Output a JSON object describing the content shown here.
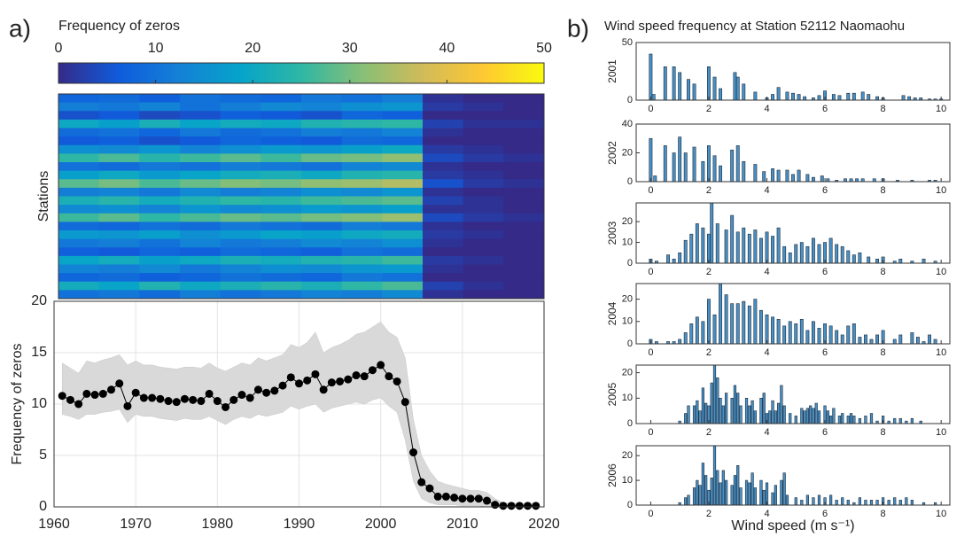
{
  "panel_labels": [
    "a)",
    "b)"
  ],
  "chart_data": [
    {
      "type": "heatmap",
      "title": "Frequency of zeros",
      "ylabel": "Stations",
      "clim": [
        0,
        50
      ],
      "cticks": [
        0,
        10,
        20,
        30,
        40,
        50
      ],
      "colormap": [
        "#352a87",
        "#0f5cdd",
        "#1481d6",
        "#06a4ca",
        "#2eb7a4",
        "#87bf77",
        "#d1bb59",
        "#fec832",
        "#f9fb0e"
      ],
      "matrix": [
        [
          8,
          9,
          7,
          10,
          9,
          8,
          11,
          10,
          12,
          1,
          0,
          0
        ],
        [
          12,
          11,
          13,
          10,
          12,
          14,
          13,
          15,
          16,
          2,
          1,
          0
        ],
        [
          5,
          6,
          4,
          5,
          7,
          6,
          5,
          8,
          7,
          0,
          0,
          0
        ],
        [
          20,
          18,
          22,
          19,
          21,
          20,
          23,
          24,
          25,
          3,
          1,
          1
        ],
        [
          9,
          10,
          8,
          11,
          9,
          10,
          12,
          11,
          13,
          1,
          0,
          0
        ],
        [
          6,
          7,
          5,
          6,
          8,
          7,
          6,
          9,
          8,
          0,
          0,
          0
        ],
        [
          15,
          14,
          16,
          13,
          15,
          17,
          16,
          18,
          20,
          2,
          1,
          0
        ],
        [
          25,
          27,
          24,
          26,
          28,
          26,
          29,
          30,
          32,
          4,
          2,
          1
        ],
        [
          10,
          9,
          11,
          10,
          12,
          11,
          10,
          13,
          14,
          1,
          0,
          0
        ],
        [
          18,
          20,
          17,
          19,
          21,
          22,
          20,
          23,
          24,
          2,
          1,
          0
        ],
        [
          28,
          30,
          27,
          29,
          31,
          30,
          32,
          33,
          35,
          5,
          2,
          1
        ],
        [
          12,
          13,
          11,
          14,
          12,
          13,
          15,
          14,
          16,
          1,
          0,
          0
        ],
        [
          22,
          24,
          21,
          23,
          25,
          24,
          26,
          27,
          28,
          3,
          1,
          0
        ],
        [
          14,
          15,
          13,
          16,
          14,
          15,
          17,
          16,
          18,
          1,
          1,
          0
        ],
        [
          26,
          28,
          25,
          27,
          29,
          28,
          30,
          31,
          33,
          4,
          2,
          1
        ],
        [
          9,
          8,
          10,
          9,
          11,
          10,
          9,
          12,
          11,
          1,
          0,
          0
        ],
        [
          17,
          16,
          18,
          15,
          17,
          19,
          18,
          20,
          21,
          2,
          1,
          0
        ],
        [
          11,
          12,
          10,
          13,
          11,
          12,
          14,
          13,
          15,
          1,
          0,
          0
        ],
        [
          7,
          6,
          8,
          7,
          9,
          8,
          7,
          10,
          9,
          0,
          0,
          0
        ],
        [
          19,
          21,
          18,
          20,
          22,
          21,
          23,
          24,
          26,
          2,
          1,
          0
        ],
        [
          13,
          12,
          14,
          11,
          13,
          15,
          14,
          16,
          17,
          1,
          0,
          0
        ],
        [
          8,
          9,
          7,
          8,
          10,
          9,
          8,
          11,
          10,
          0,
          0,
          0
        ],
        [
          21,
          19,
          23,
          20,
          22,
          24,
          22,
          25,
          27,
          3,
          1,
          0
        ],
        [
          10,
          11,
          9,
          12,
          10,
          11,
          13,
          12,
          14,
          1,
          0,
          0
        ]
      ]
    },
    {
      "type": "line",
      "ylabel": "Frequency of zeros",
      "grid": true,
      "xlim": [
        1960,
        2020
      ],
      "xticks": [
        1960,
        1970,
        1980,
        1990,
        2000,
        2010,
        2020
      ],
      "ylim": [
        0,
        20
      ],
      "yticks": [
        0,
        5,
        10,
        15,
        20
      ],
      "x": [
        1961,
        1962,
        1963,
        1964,
        1965,
        1966,
        1967,
        1968,
        1969,
        1970,
        1971,
        1972,
        1973,
        1974,
        1975,
        1976,
        1977,
        1978,
        1979,
        1980,
        1981,
        1982,
        1983,
        1984,
        1985,
        1986,
        1987,
        1988,
        1989,
        1990,
        1991,
        1992,
        1993,
        1994,
        1995,
        1996,
        1997,
        1998,
        1999,
        2000,
        2001,
        2002,
        2003,
        2004,
        2005,
        2006,
        2007,
        2008,
        2009,
        2010,
        2011,
        2012,
        2013,
        2014,
        2015,
        2016,
        2017,
        2018,
        2019
      ],
      "band": {
        "color": "#d9d9d9",
        "high": [
          14.0,
          13.5,
          13.0,
          14.2,
          14.0,
          14.3,
          14.5,
          14.8,
          13.8,
          14.2,
          13.8,
          13.8,
          13.6,
          13.5,
          13.4,
          13.6,
          13.6,
          13.5,
          14.0,
          13.5,
          13.2,
          13.6,
          14.0,
          13.8,
          14.5,
          14.2,
          14.5,
          14.8,
          15.8,
          15.5,
          16.0,
          17.0,
          15.0,
          15.5,
          15.8,
          16.2,
          16.8,
          17.0,
          17.5,
          18.0,
          17.0,
          16.5,
          14.5,
          8.5,
          5.0,
          3.5,
          2.5,
          2.2,
          2.0,
          1.8,
          1.6,
          1.6,
          1.4,
          0.8,
          0.4,
          0.3,
          0.3,
          0.3,
          0.3
        ],
        "low": [
          9.0,
          8.8,
          8.5,
          9.0,
          9.0,
          9.2,
          9.3,
          9.5,
          8.2,
          9.0,
          8.8,
          8.8,
          8.6,
          8.5,
          8.4,
          8.6,
          8.5,
          8.5,
          8.8,
          8.4,
          8.0,
          8.5,
          8.8,
          8.6,
          9.0,
          8.8,
          9.0,
          9.2,
          9.8,
          9.5,
          9.8,
          10.0,
          9.2,
          9.6,
          9.8,
          10.0,
          10.2,
          10.0,
          10.4,
          10.6,
          9.8,
          9.2,
          6.5,
          2.5,
          0.8,
          0.4,
          0.2,
          0.2,
          0.2,
          0.1,
          0.1,
          0.1,
          0.0,
          0.0,
          0.0,
          0.0,
          0.0,
          0.0,
          0.0
        ]
      },
      "series": [
        {
          "color": "#000000",
          "values": [
            10.8,
            10.4,
            10.0,
            11.0,
            10.9,
            11.0,
            11.4,
            12.0,
            9.8,
            11.1,
            10.6,
            10.6,
            10.5,
            10.3,
            10.2,
            10.5,
            10.4,
            10.3,
            11.0,
            10.3,
            9.7,
            10.4,
            10.9,
            10.6,
            11.4,
            11.1,
            11.3,
            11.8,
            12.6,
            12.0,
            12.3,
            12.9,
            11.4,
            12.1,
            12.2,
            12.4,
            12.8,
            12.7,
            13.3,
            13.8,
            12.7,
            12.2,
            10.2,
            5.3,
            2.4,
            1.8,
            1.0,
            1.0,
            0.9,
            0.8,
            0.8,
            0.8,
            0.6,
            0.2,
            0.1,
            0.1,
            0.1,
            0.1,
            0.1
          ]
        }
      ]
    },
    {
      "type": "histogram",
      "title": "Wind speed frequency at Station 52112 Naomaohu",
      "ylabel": "2001",
      "color": "#4a90c4",
      "bar_width": 0.1,
      "xlim": [
        -0.5,
        10.3
      ],
      "xticks": [
        0,
        2,
        4,
        6,
        8,
        10
      ],
      "ylim": [
        0,
        50
      ],
      "yticks": [
        0,
        50
      ],
      "x": [
        0,
        0.1,
        0.5,
        0.8,
        1.0,
        1.3,
        1.5,
        2.0,
        2.2,
        2.4,
        2.9,
        3.0,
        3.2,
        3.6,
        4.0,
        4.2,
        4.4,
        4.7,
        4.9,
        5.1,
        5.3,
        5.6,
        5.8,
        6.0,
        6.3,
        6.5,
        6.8,
        7.0,
        7.3,
        7.5,
        7.8,
        8.0,
        8.7,
        8.9,
        9.1,
        9.3,
        9.6,
        9.8,
        10.0
      ],
      "values": [
        40,
        5,
        29,
        29,
        24,
        18,
        14,
        29,
        20,
        10,
        24,
        20,
        14,
        7,
        2,
        5,
        11,
        7,
        6,
        5,
        3,
        2,
        4,
        8,
        5,
        4,
        6,
        6,
        7,
        5,
        3,
        2,
        4,
        3,
        2,
        2,
        1,
        1,
        1
      ]
    },
    {
      "type": "histogram",
      "ylabel": "2002",
      "color": "#4a90c4",
      "bar_width": 0.1,
      "xlim": [
        -0.5,
        10.3
      ],
      "xticks": [
        0,
        2,
        4,
        6,
        8,
        10
      ],
      "ylim": [
        0,
        40
      ],
      "yticks": [
        0,
        20,
        40
      ],
      "x": [
        0,
        0.15,
        0.5,
        0.8,
        1.0,
        1.2,
        1.5,
        1.8,
        2.0,
        2.2,
        2.4,
        2.8,
        3.0,
        3.2,
        3.6,
        3.9,
        4.2,
        4.4,
        4.7,
        4.9,
        5.1,
        5.4,
        5.6,
        5.9,
        6.1,
        6.4,
        6.7,
        6.9,
        7.1,
        7.3,
        7.7,
        8.0,
        8.5,
        9.0,
        9.6,
        9.8
      ],
      "values": [
        30,
        4,
        25,
        20,
        31,
        20,
        24,
        14,
        25,
        18,
        11,
        22,
        25,
        14,
        12,
        7,
        9,
        8,
        8,
        5,
        8,
        5,
        3,
        4,
        2,
        1,
        2,
        2,
        2,
        2,
        2,
        2,
        1,
        1,
        1,
        1
      ]
    },
    {
      "type": "histogram",
      "ylabel": "2003",
      "color": "#4a90c4",
      "bar_width": 0.1,
      "xlim": [
        -0.5,
        10.3
      ],
      "xticks": [
        0,
        2,
        4,
        6,
        8,
        10
      ],
      "ylim": [
        0,
        29
      ],
      "yticks": [
        0,
        10,
        20
      ],
      "x": [
        0,
        0.2,
        0.6,
        0.8,
        1.0,
        1.2,
        1.4,
        1.6,
        1.8,
        2.0,
        2.1,
        2.3,
        2.6,
        2.8,
        3.0,
        3.2,
        3.4,
        3.6,
        3.8,
        4.0,
        4.2,
        4.4,
        4.6,
        4.8,
        5.0,
        5.2,
        5.4,
        5.6,
        5.8,
        6.0,
        6.2,
        6.4,
        6.6,
        6.8,
        7.0,
        7.2,
        7.5,
        7.8,
        8.0,
        8.4,
        8.6,
        9.0,
        9.4,
        9.8
      ],
      "values": [
        2,
        1,
        4,
        2,
        5,
        11,
        14,
        19,
        17,
        14,
        29,
        19,
        16,
        23,
        15,
        17,
        14,
        16,
        12,
        15,
        13,
        17,
        8,
        5,
        9,
        10,
        8,
        12,
        9,
        10,
        12,
        9,
        8,
        6,
        4,
        5,
        3,
        2,
        3,
        1,
        2,
        1,
        2,
        1
      ]
    },
    {
      "type": "histogram",
      "ylabel": "2004",
      "color": "#4a90c4",
      "bar_width": 0.1,
      "xlim": [
        -0.5,
        10.3
      ],
      "xticks": [
        0,
        2,
        4,
        6,
        8,
        10
      ],
      "ylim": [
        0,
        27
      ],
      "yticks": [
        0,
        10,
        20
      ],
      "x": [
        0,
        0.2,
        0.6,
        0.8,
        1.0,
        1.2,
        1.4,
        1.6,
        1.8,
        2.0,
        2.2,
        2.4,
        2.6,
        2.8,
        3.0,
        3.2,
        3.4,
        3.6,
        3.8,
        4.0,
        4.2,
        4.4,
        4.6,
        4.8,
        5.0,
        5.2,
        5.4,
        5.6,
        5.8,
        6.0,
        6.2,
        6.4,
        6.6,
        6.8,
        7.0,
        7.2,
        7.4,
        7.6,
        7.8,
        8.0,
        8.4,
        8.6,
        9.0,
        9.2,
        9.4,
        9.6,
        9.8
      ],
      "values": [
        2,
        1,
        1,
        1,
        2,
        5,
        9,
        12,
        10,
        20,
        13,
        27,
        22,
        18,
        18,
        19,
        17,
        20,
        15,
        13,
        12,
        11,
        8,
        10,
        9,
        11,
        6,
        10,
        7,
        9,
        8,
        6,
        4,
        8,
        9,
        3,
        4,
        2,
        4,
        6,
        2,
        4,
        5,
        3,
        1,
        4,
        2
      ]
    },
    {
      "type": "histogram",
      "ylabel": "2005",
      "color": "#4a90c4",
      "bar_width": 0.08,
      "xlim": [
        -0.5,
        10.3
      ],
      "xticks": [
        0,
        2,
        4,
        6,
        8,
        10
      ],
      "ylim": [
        0,
        23
      ],
      "yticks": [
        0,
        10,
        20
      ],
      "x": [
        1.0,
        1.2,
        1.3,
        1.5,
        1.6,
        1.7,
        1.8,
        1.9,
        2.0,
        2.1,
        2.2,
        2.3,
        2.4,
        2.5,
        2.6,
        2.8,
        2.9,
        3.0,
        3.1,
        3.3,
        3.4,
        3.5,
        3.6,
        3.8,
        3.9,
        4.0,
        4.1,
        4.2,
        4.3,
        4.4,
        4.5,
        4.6,
        4.8,
        5.0,
        5.2,
        5.3,
        5.4,
        5.5,
        5.6,
        5.7,
        5.8,
        6.0,
        6.1,
        6.2,
        6.3,
        6.5,
        6.6,
        6.8,
        6.9,
        7.0,
        7.2,
        7.4,
        7.6,
        7.8,
        8.0,
        8.2,
        8.4,
        8.6,
        8.8,
        9.0,
        9.3
      ],
      "values": [
        1,
        4,
        7,
        7,
        9,
        5,
        14,
        8,
        7,
        16,
        23,
        18,
        10,
        7,
        12,
        10,
        15,
        12,
        7,
        10,
        7,
        9,
        5,
        10,
        12,
        4,
        5,
        9,
        5,
        8,
        15,
        7,
        4,
        3,
        6,
        5,
        6,
        7,
        6,
        8,
        5,
        7,
        5,
        3,
        6,
        3,
        4,
        3,
        4,
        3,
        2,
        3,
        4,
        1,
        3,
        1,
        2,
        2,
        1,
        2,
        1
      ]
    },
    {
      "type": "histogram",
      "ylabel": "2006",
      "xlabel": "Wind speed (m s⁻¹)",
      "color": "#4a90c4",
      "bar_width": 0.08,
      "xlim": [
        -0.5,
        10.3
      ],
      "xticks": [
        0,
        2,
        4,
        6,
        8,
        10
      ],
      "ylim": [
        0,
        24
      ],
      "yticks": [
        0,
        10,
        20
      ],
      "x": [
        1.0,
        1.2,
        1.3,
        1.5,
        1.6,
        1.7,
        1.8,
        1.9,
        2.0,
        2.1,
        2.2,
        2.3,
        2.4,
        2.5,
        2.6,
        2.8,
        2.9,
        3.0,
        3.1,
        3.3,
        3.4,
        3.5,
        3.6,
        3.8,
        3.9,
        4.0,
        4.2,
        4.3,
        4.5,
        4.6,
        4.7,
        5.0,
        5.2,
        5.4,
        5.6,
        5.8,
        6.0,
        6.2,
        6.4,
        6.6,
        6.8,
        7.0,
        7.2,
        7.4,
        7.6,
        7.8,
        8.0,
        8.2,
        8.4,
        8.6,
        8.8,
        9.0,
        9.4,
        9.8
      ],
      "values": [
        1,
        3,
        4,
        7,
        10,
        8,
        17,
        12,
        6,
        11,
        24,
        14,
        9,
        14,
        10,
        8,
        12,
        16,
        7,
        10,
        9,
        13,
        7,
        10,
        6,
        9,
        5,
        8,
        10,
        13,
        4,
        3,
        2,
        4,
        3,
        4,
        3,
        4,
        2,
        3,
        2,
        1,
        3,
        2,
        2,
        2,
        3,
        2,
        3,
        2,
        3,
        2,
        1,
        1
      ]
    }
  ]
}
